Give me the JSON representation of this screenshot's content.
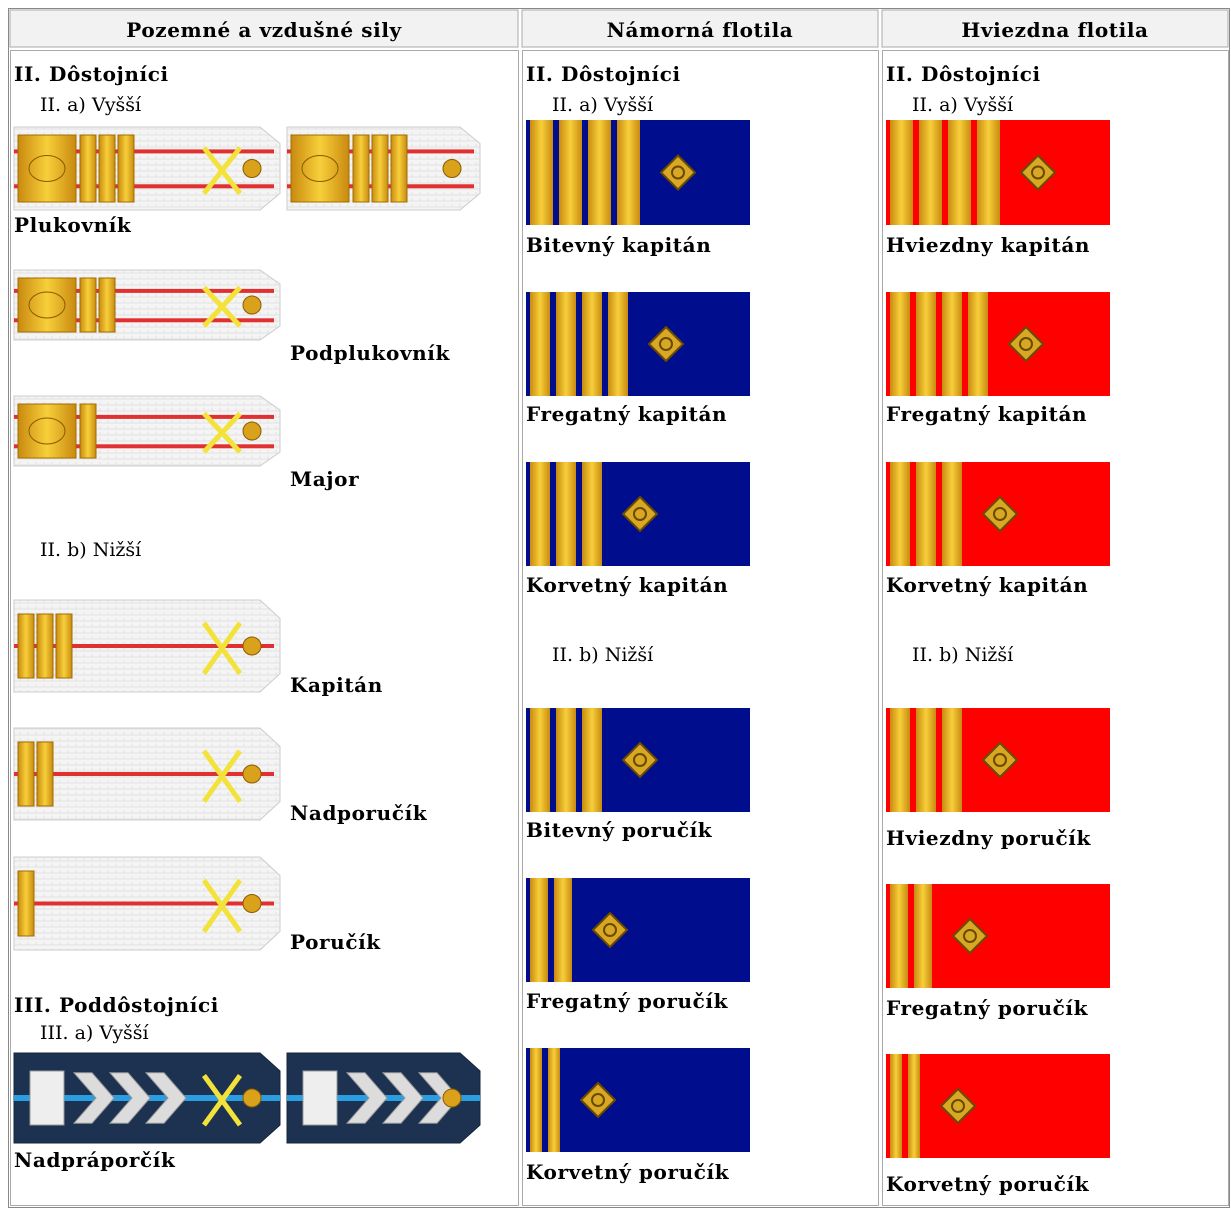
{
  "table": {
    "headers": [
      "Pozemné a vzdušné sily",
      "Námorná flotila",
      "Hviezdna flotila"
    ],
    "columns": [
      {
        "sections": [
          {
            "title": "II. Dôstojníci",
            "subsections": [
              {
                "title": "II. a) Vyšší",
                "ranks": [
                  "Plukovník",
                  "Podplukovník",
                  "Major"
                ]
              },
              {
                "title": "II. b) Nižší",
                "ranks": [
                  "Kapitán",
                  "Nadporučík",
                  "Poručík"
                ]
              }
            ]
          },
          {
            "title": "III. Poddôstojníci",
            "subsections": [
              {
                "title": "III. a) Vyšší",
                "ranks": [
                  "Nadpráporčík"
                ]
              }
            ]
          }
        ]
      },
      {
        "sections": [
          {
            "title": "II. Dôstojníci",
            "subsections": [
              {
                "title": "II. a) Vyšší",
                "ranks": [
                  "Bitevný kapitán",
                  "Fregatný kapitán",
                  "Korvetný kapitán"
                ]
              },
              {
                "title": "II. b) Nižší",
                "ranks": [
                  "Bitevný poručík",
                  "Fregatný poručík",
                  "Korvetný poručík"
                ]
              }
            ]
          }
        ]
      },
      {
        "sections": [
          {
            "title": "II. Dôstojníci",
            "subsections": [
              {
                "title": "II. a) Vyšší",
                "ranks": [
                  "Hviezdny kapitán",
                  "Fregatný kapitán",
                  "Korvetný kapitán"
                ]
              },
              {
                "title": "II. b) Nižší",
                "ranks": [
                  "Hviezdny poručík",
                  "Fregatný poručík",
                  "Korvetný poručík"
                ]
              }
            ]
          }
        ]
      }
    ]
  }
}
